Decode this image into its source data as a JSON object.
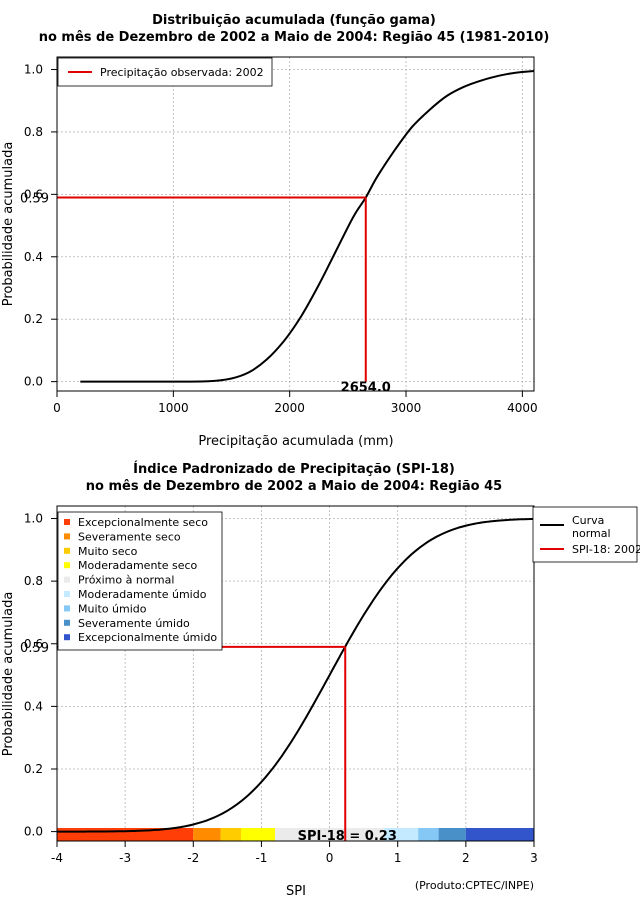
{
  "chart_data": [
    {
      "type": "line",
      "title": "Distribuição acumulada (função gama)",
      "subtitle": "no mês de Dezembro de 2002 a Maio de 2004: Região 45 (1981-2010)",
      "xlabel": "Precipitação acumulada (mm)",
      "ylabel": "Probabilidade acumulada",
      "xlim": [
        0,
        4100
      ],
      "ylim": [
        -0.03,
        1.04
      ],
      "xticks": [
        0,
        1000,
        2000,
        3000,
        4000
      ],
      "xtick_labels": [
        "0",
        "1000",
        "2000",
        "3000",
        "4000"
      ],
      "yticks": [
        0.0,
        0.2,
        0.4,
        0.6,
        0.8,
        1.0
      ],
      "ytick_labels": [
        "0.0",
        "0.2",
        "0.4",
        "0.6",
        "0.8",
        "1.0"
      ],
      "grid": true,
      "legend_position": "top-left",
      "legend": [
        {
          "label": "Precipitação observada: 2002",
          "color": "#e00000"
        }
      ],
      "curve": {
        "name": "Distribuição gama",
        "color": "#000000",
        "x": [
          200,
          1000,
          1300,
          1500,
          1650,
          1800,
          1950,
          2100,
          2250,
          2400,
          2550,
          2654,
          2750,
          2900,
          3050,
          3200,
          3350,
          3500,
          3650,
          3800,
          3950,
          4100
        ],
        "y": [
          0.0,
          0.0,
          0.001,
          0.01,
          0.03,
          0.07,
          0.13,
          0.21,
          0.31,
          0.42,
          0.53,
          0.59,
          0.655,
          0.74,
          0.815,
          0.87,
          0.915,
          0.945,
          0.965,
          0.98,
          0.99,
          0.995
        ]
      },
      "observed": {
        "x": 2654.0,
        "y": 0.59,
        "x_label": "2654.0",
        "y_label": "0.59",
        "color": "#e00000"
      }
    },
    {
      "type": "line",
      "title": "Índice Padronizado de Precipitação (SPI-18)",
      "subtitle": "no mês de Dezembro de 2002 a Maio de 2004: Região 45",
      "xlabel": "SPI",
      "ylabel": "Probabilidade acumulada",
      "xlim": [
        -4,
        3
      ],
      "ylim": [
        -0.03,
        1.04
      ],
      "xticks": [
        -4,
        -3,
        -2,
        -1,
        0,
        1,
        2,
        3
      ],
      "xtick_labels": [
        "-4",
        "-3",
        "-2",
        "-1",
        "0",
        "1",
        "2",
        "3"
      ],
      "yticks": [
        0.0,
        0.2,
        0.4,
        0.6,
        0.8,
        1.0
      ],
      "ytick_labels": [
        "0.0",
        "0.2",
        "0.4",
        "0.6",
        "0.8",
        "1.0"
      ],
      "grid": true,
      "legend_position": "top-right",
      "legend": [
        {
          "label": "Curva normal",
          "line1": "Curva",
          "line2": "normal",
          "color": "#000000"
        },
        {
          "label": "SPI-18: 2002",
          "color": "#e00000"
        }
      ],
      "category_legend": [
        {
          "label": "Excepcionalmente seco",
          "color": "#ff3d06"
        },
        {
          "label": "Severamente seco",
          "color": "#ff8c00"
        },
        {
          "label": "Muito seco",
          "color": "#ffcc00"
        },
        {
          "label": "Moderadamente seco",
          "color": "#ffff00"
        },
        {
          "label": "Próximo à normal",
          "color": "#ebebeb"
        },
        {
          "label": "Moderadamente úmido",
          "color": "#c3eaff"
        },
        {
          "label": "Muito úmido",
          "color": "#86c8f5"
        },
        {
          "label": "Severamente úmido",
          "color": "#4a90c8"
        },
        {
          "label": "Excepcionalmente úmido",
          "color": "#3355cc"
        }
      ],
      "category_bands": [
        {
          "from": -4.0,
          "to": -2.0,
          "color": "#ff3d06"
        },
        {
          "from": -2.0,
          "to": -1.6,
          "color": "#ff8c00"
        },
        {
          "from": -1.6,
          "to": -1.3,
          "color": "#ffcc00"
        },
        {
          "from": -1.3,
          "to": -0.8,
          "color": "#ffff00"
        },
        {
          "from": -0.8,
          "to": 0.8,
          "color": "#ebebeb"
        },
        {
          "from": 0.8,
          "to": 1.3,
          "color": "#c3eaff"
        },
        {
          "from": 1.3,
          "to": 1.6,
          "color": "#86c8f5"
        },
        {
          "from": 1.6,
          "to": 2.0,
          "color": "#4a90c8"
        },
        {
          "from": 2.0,
          "to": 3.0,
          "color": "#3355cc"
        }
      ],
      "observed": {
        "x": 0.23,
        "y": 0.59,
        "y_label": "0.59",
        "spi_label": "SPI-18 = 0.23",
        "color": "#e00000"
      },
      "credit": "(Produto:CPTEC/INPE)"
    }
  ]
}
